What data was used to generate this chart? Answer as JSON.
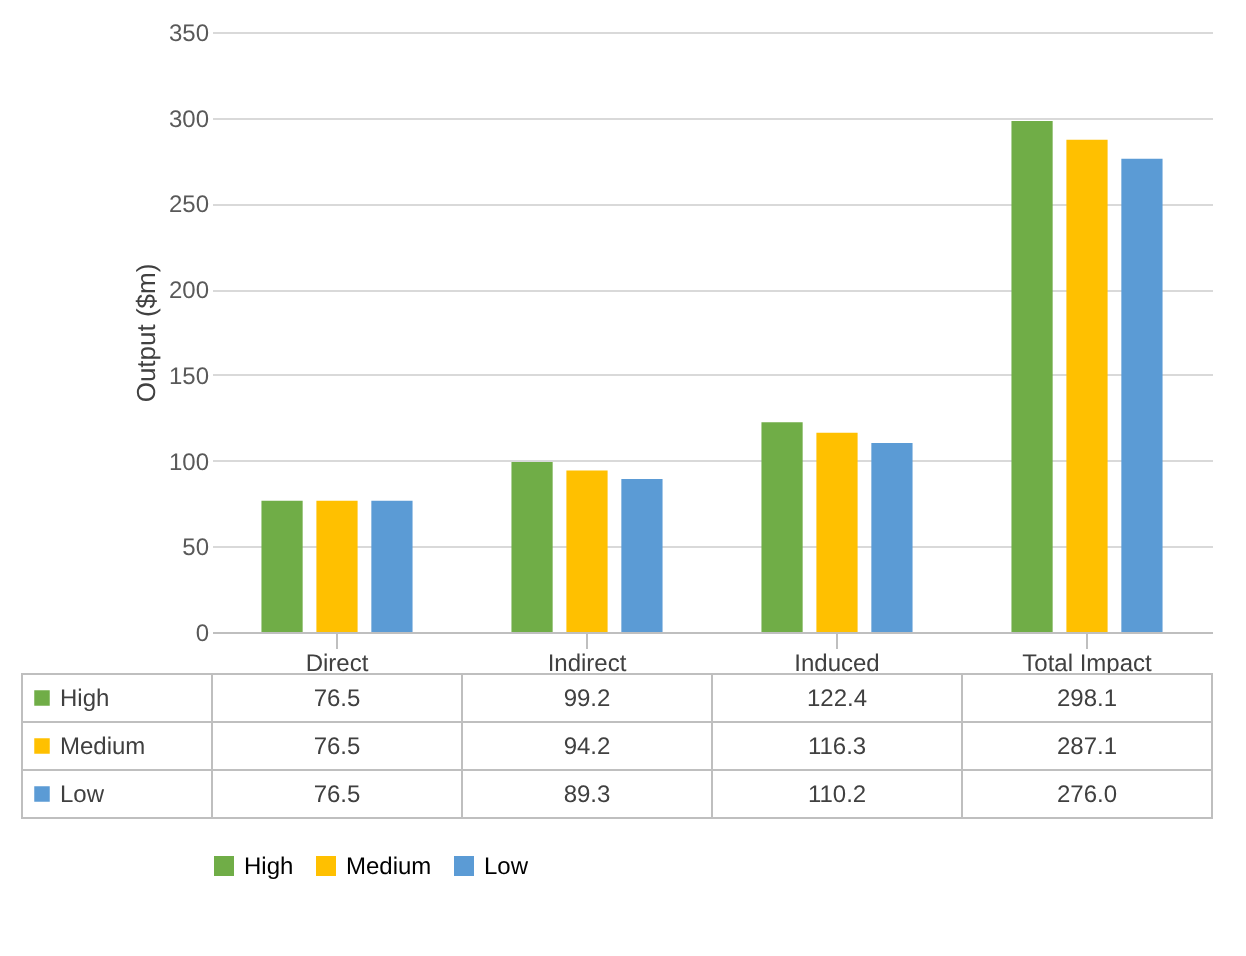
{
  "chart_data": {
    "type": "bar",
    "ylabel": "Output ($m)",
    "categories": [
      "Direct",
      "Indirect",
      "Induced",
      "Total Impact"
    ],
    "series": [
      {
        "name": "High",
        "color": "#70ad47",
        "values": [
          76.5,
          99.2,
          122.4,
          298.1
        ],
        "value_labels": [
          "76.5",
          "99.2",
          "122.4",
          "298.1"
        ]
      },
      {
        "name": "Medium",
        "color": "#ffc000",
        "values": [
          76.5,
          94.2,
          116.3,
          287.1
        ],
        "value_labels": [
          "76.5",
          "94.2",
          "116.3",
          "287.1"
        ]
      },
      {
        "name": "Low",
        "color": "#5b9bd5",
        "values": [
          76.5,
          89.3,
          110.2,
          276.0
        ],
        "value_labels": [
          "76.5",
          "89.3",
          "110.2",
          "276.0"
        ]
      }
    ],
    "ylim": [
      0,
      350
    ],
    "yticks": [
      0,
      50,
      100,
      150,
      200,
      250,
      300,
      350
    ],
    "grid": "y",
    "legend": "bottom"
  }
}
